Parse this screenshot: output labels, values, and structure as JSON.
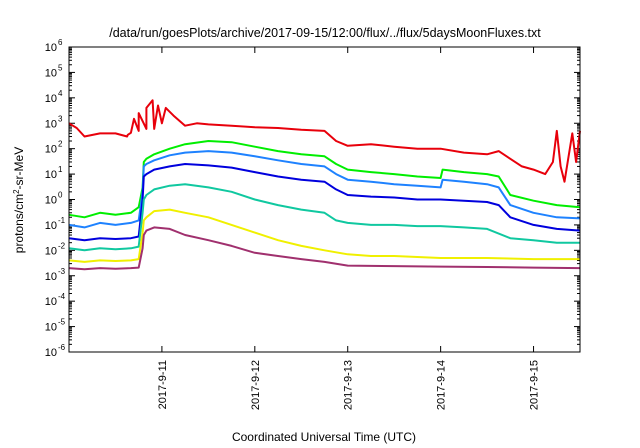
{
  "chart_data": {
    "type": "line",
    "title": "/data/run/goesPlots/archive/2017-09-15/12:00/flux/../flux/5daysMoonFluxes.txt",
    "xlabel": "Coordinated Universal Time (UTC)",
    "ylabel": "protons/cm2-sr-MeV",
    "y_scale": "log",
    "ylim": [
      1e-06,
      1000000.0
    ],
    "y_ticks": [
      {
        "value": 1e-06,
        "base": "10",
        "exp": "-6"
      },
      {
        "value": 1e-05,
        "base": "10",
        "exp": "-5"
      },
      {
        "value": 0.0001,
        "base": "10",
        "exp": "-4"
      },
      {
        "value": 0.001,
        "base": "10",
        "exp": "-3"
      },
      {
        "value": 0.01,
        "base": "10",
        "exp": "-2"
      },
      {
        "value": 0.1,
        "base": "10",
        "exp": "-1"
      },
      {
        "value": 1,
        "base": "10",
        "exp": "0"
      },
      {
        "value": 10,
        "base": "10",
        "exp": "1"
      },
      {
        "value": 100,
        "base": "10",
        "exp": "2"
      },
      {
        "value": 1000,
        "base": "10",
        "exp": "3"
      },
      {
        "value": 10000,
        "base": "10",
        "exp": "4"
      },
      {
        "value": 100000,
        "base": "10",
        "exp": "5"
      },
      {
        "value": 1000000,
        "base": "10",
        "exp": "6"
      }
    ],
    "xlim": [
      "2017-09-10 00:00",
      "2017-09-15 12:00"
    ],
    "x_ticks": [
      "2017-9-11",
      "2017-9-12",
      "2017-9-13",
      "2017-9-14",
      "2017-9-15"
    ],
    "x_tick_dates": [
      "2017-09-11",
      "2017-09-12",
      "2017-09-13",
      "2017-09-14",
      "2017-09-15"
    ],
    "grid": false,
    "series": [
      {
        "color": "#e8000b",
        "points": [
          [
            "2017-09-10 00:00",
            1000
          ],
          [
            "2017-09-10 02:00",
            650
          ],
          [
            "2017-09-10 04:00",
            300
          ],
          [
            "2017-09-10 08:00",
            400
          ],
          [
            "2017-09-10 12:00",
            400
          ],
          [
            "2017-09-10 15:00",
            300
          ],
          [
            "2017-09-10 18:00",
            500
          ],
          [
            "2017-09-10 20:00",
            600
          ],
          [
            "2017-09-10 22:00",
            600
          ],
          [
            "2017-09-11 00:00",
            1000
          ],
          [
            "2017-09-10 15:12",
            350
          ],
          [
            "2017-09-10 16:00",
            420
          ],
          [
            "2017-09-10 16:48",
            1500
          ],
          [
            "2017-09-10 18:00",
            2500
          ],
          [
            "2017-09-10 20:00",
            4000
          ],
          [
            "2017-09-10 21:36",
            8000
          ],
          [
            "2017-09-10 23:00",
            5000
          ],
          [
            "2017-09-11 01:00",
            4000
          ],
          [
            "2017-09-11 03:00",
            2000
          ],
          [
            "2017-09-11 06:00",
            800
          ],
          [
            "2017-09-11 09:00",
            1000
          ],
          [
            "2017-09-11 12:00",
            900
          ],
          [
            "2017-09-11 18:00",
            800
          ],
          [
            "2017-09-12 00:00",
            700
          ],
          [
            "2017-09-12 06:00",
            650
          ],
          [
            "2017-09-12 12:00",
            550
          ],
          [
            "2017-09-12 18:00",
            500
          ],
          [
            "2017-09-12 21:00",
            200
          ],
          [
            "2017-09-13 00:00",
            130
          ],
          [
            "2017-09-13 06:00",
            150
          ],
          [
            "2017-09-13 12:00",
            120
          ],
          [
            "2017-09-13 18:00",
            100
          ],
          [
            "2017-09-14 00:00",
            100
          ],
          [
            "2017-09-14 06:00",
            70
          ],
          [
            "2017-09-14 12:00",
            60
          ],
          [
            "2017-09-14 15:00",
            80
          ],
          [
            "2017-09-14 18:00",
            40
          ],
          [
            "2017-09-14 21:00",
            20
          ],
          [
            "2017-09-15 00:00",
            15
          ],
          [
            "2017-09-15 03:00",
            10
          ],
          [
            "2017-09-15 05:00",
            30
          ],
          [
            "2017-09-15 06:00",
            500
          ],
          [
            "2017-09-15 07:00",
            20
          ],
          [
            "2017-09-15 08:00",
            5
          ],
          [
            "2017-09-15 10:00",
            400
          ],
          [
            "2017-09-15 11:00",
            30
          ],
          [
            "2017-09-15 12:00",
            500
          ]
        ]
      },
      {
        "color": "#00ee00",
        "points": [
          [
            "2017-09-10 00:00",
            0.25
          ],
          [
            "2017-09-10 04:00",
            0.2
          ],
          [
            "2017-09-10 08:00",
            0.3
          ],
          [
            "2017-09-10 12:00",
            0.25
          ],
          [
            "2017-09-10 16:00",
            0.3
          ],
          [
            "2017-09-10 18:00",
            0.5
          ],
          [
            "2017-09-10 19:00",
            3
          ],
          [
            "2017-09-10 19:20",
            30
          ],
          [
            "2017-09-10 20:00",
            40
          ],
          [
            "2017-09-10 22:00",
            60
          ],
          [
            "2017-09-11 02:00",
            100
          ],
          [
            "2017-09-11 06:00",
            150
          ],
          [
            "2017-09-11 12:00",
            200
          ],
          [
            "2017-09-11 18:00",
            180
          ],
          [
            "2017-09-12 00:00",
            120
          ],
          [
            "2017-09-12 06:00",
            80
          ],
          [
            "2017-09-12 12:00",
            60
          ],
          [
            "2017-09-12 18:00",
            50
          ],
          [
            "2017-09-12 21:00",
            25
          ],
          [
            "2017-09-13 00:00",
            15
          ],
          [
            "2017-09-13 06:00",
            12
          ],
          [
            "2017-09-13 12:00",
            10
          ],
          [
            "2017-09-13 18:00",
            8
          ],
          [
            "2017-09-14 00:00",
            7
          ],
          [
            "2017-09-14 00:30",
            15
          ],
          [
            "2017-09-14 06:00",
            12
          ],
          [
            "2017-09-14 12:00",
            10
          ],
          [
            "2017-09-14 15:00",
            8
          ],
          [
            "2017-09-14 18:00",
            1.5
          ],
          [
            "2017-09-15 00:00",
            0.9
          ],
          [
            "2017-09-15 06:00",
            0.6
          ],
          [
            "2017-09-15 12:00",
            0.5
          ]
        ]
      },
      {
        "color": "#1e82ff",
        "points": [
          [
            "2017-09-10 00:00",
            0.1
          ],
          [
            "2017-09-10 04:00",
            0.08
          ],
          [
            "2017-09-10 08:00",
            0.12
          ],
          [
            "2017-09-10 12:00",
            0.1
          ],
          [
            "2017-09-10 16:00",
            0.12
          ],
          [
            "2017-09-10 18:00",
            0.15
          ],
          [
            "2017-09-10 19:00",
            2
          ],
          [
            "2017-09-10 19:20",
            20
          ],
          [
            "2017-09-10 20:00",
            25
          ],
          [
            "2017-09-10 22:00",
            35
          ],
          [
            "2017-09-11 02:00",
            55
          ],
          [
            "2017-09-11 06:00",
            70
          ],
          [
            "2017-09-11 12:00",
            80
          ],
          [
            "2017-09-11 18:00",
            70
          ],
          [
            "2017-09-12 00:00",
            50
          ],
          [
            "2017-09-12 06:00",
            35
          ],
          [
            "2017-09-12 12:00",
            25
          ],
          [
            "2017-09-12 18:00",
            20
          ],
          [
            "2017-09-12 21:00",
            10
          ],
          [
            "2017-09-13 00:00",
            6
          ],
          [
            "2017-09-13 06:00",
            5
          ],
          [
            "2017-09-13 12:00",
            4
          ],
          [
            "2017-09-13 18:00",
            3.5
          ],
          [
            "2017-09-14 00:00",
            3
          ],
          [
            "2017-09-14 00:30",
            6
          ],
          [
            "2017-09-14 06:00",
            5
          ],
          [
            "2017-09-14 12:00",
            4
          ],
          [
            "2017-09-14 15:00",
            3
          ],
          [
            "2017-09-14 18:00",
            0.6
          ],
          [
            "2017-09-15 00:00",
            0.3
          ],
          [
            "2017-09-15 06:00",
            0.2
          ],
          [
            "2017-09-15 12:00",
            0.18
          ]
        ]
      },
      {
        "color": "#0000dd",
        "points": [
          [
            "2017-09-10 00:00",
            0.03
          ],
          [
            "2017-09-10 04:00",
            0.025
          ],
          [
            "2017-09-10 08:00",
            0.03
          ],
          [
            "2017-09-10 12:00",
            0.028
          ],
          [
            "2017-09-10 16:00",
            0.03
          ],
          [
            "2017-09-10 18:00",
            0.035
          ],
          [
            "2017-09-10 19:00",
            1
          ],
          [
            "2017-09-10 19:20",
            8
          ],
          [
            "2017-09-10 20:00",
            10
          ],
          [
            "2017-09-10 22:00",
            15
          ],
          [
            "2017-09-11 02:00",
            20
          ],
          [
            "2017-09-11 06:00",
            25
          ],
          [
            "2017-09-11 12:00",
            22
          ],
          [
            "2017-09-11 18:00",
            18
          ],
          [
            "2017-09-12 00:00",
            12
          ],
          [
            "2017-09-12 06:00",
            8
          ],
          [
            "2017-09-12 12:00",
            6
          ],
          [
            "2017-09-12 18:00",
            5
          ],
          [
            "2017-09-12 21:00",
            2.5
          ],
          [
            "2017-09-13 00:00",
            1.5
          ],
          [
            "2017-09-13 06:00",
            1.3
          ],
          [
            "2017-09-13 12:00",
            1.2
          ],
          [
            "2017-09-13 18:00",
            1
          ],
          [
            "2017-09-14 00:00",
            1
          ],
          [
            "2017-09-14 06:00",
            0.9
          ],
          [
            "2017-09-14 12:00",
            0.8
          ],
          [
            "2017-09-14 15:00",
            0.6
          ],
          [
            "2017-09-14 18:00",
            0.2
          ],
          [
            "2017-09-15 00:00",
            0.1
          ],
          [
            "2017-09-15 06:00",
            0.07
          ],
          [
            "2017-09-15 12:00",
            0.06
          ]
        ]
      },
      {
        "color": "#10c8a0",
        "points": [
          [
            "2017-09-10 00:00",
            0.012
          ],
          [
            "2017-09-10 04:00",
            0.01
          ],
          [
            "2017-09-10 08:00",
            0.012
          ],
          [
            "2017-09-10 12:00",
            0.011
          ],
          [
            "2017-09-10 16:00",
            0.012
          ],
          [
            "2017-09-10 18:00",
            0.014
          ],
          [
            "2017-09-10 19:00",
            0.3
          ],
          [
            "2017-09-10 19:20",
            1
          ],
          [
            "2017-09-10 20:00",
            1.5
          ],
          [
            "2017-09-10 22:00",
            2.5
          ],
          [
            "2017-09-11 02:00",
            3.5
          ],
          [
            "2017-09-11 06:00",
            4
          ],
          [
            "2017-09-11 12:00",
            3
          ],
          [
            "2017-09-11 18:00",
            2
          ],
          [
            "2017-09-12 00:00",
            1
          ],
          [
            "2017-09-12 06:00",
            0.6
          ],
          [
            "2017-09-12 12:00",
            0.4
          ],
          [
            "2017-09-12 18:00",
            0.3
          ],
          [
            "2017-09-12 21:00",
            0.15
          ],
          [
            "2017-09-13 00:00",
            0.12
          ],
          [
            "2017-09-13 06:00",
            0.1
          ],
          [
            "2017-09-13 12:00",
            0.1
          ],
          [
            "2017-09-13 18:00",
            0.09
          ],
          [
            "2017-09-14 00:00",
            0.09
          ],
          [
            "2017-09-14 06:00",
            0.08
          ],
          [
            "2017-09-14 12:00",
            0.07
          ],
          [
            "2017-09-14 18:00",
            0.03
          ],
          [
            "2017-09-15 00:00",
            0.025
          ],
          [
            "2017-09-15 06:00",
            0.02
          ],
          [
            "2017-09-15 12:00",
            0.02
          ]
        ]
      },
      {
        "color": "#f0f000",
        "points": [
          [
            "2017-09-10 00:00",
            0.004
          ],
          [
            "2017-09-10 04:00",
            0.0035
          ],
          [
            "2017-09-10 08:00",
            0.004
          ],
          [
            "2017-09-10 12:00",
            0.0038
          ],
          [
            "2017-09-10 16:00",
            0.004
          ],
          [
            "2017-09-10 18:00",
            0.0045
          ],
          [
            "2017-09-10 19:00",
            0.05
          ],
          [
            "2017-09-10 19:20",
            0.15
          ],
          [
            "2017-09-10 20:00",
            0.2
          ],
          [
            "2017-09-10 22:00",
            0.35
          ],
          [
            "2017-09-11 02:00",
            0.4
          ],
          [
            "2017-09-11 06:00",
            0.3
          ],
          [
            "2017-09-11 12:00",
            0.2
          ],
          [
            "2017-09-11 18:00",
            0.1
          ],
          [
            "2017-09-12 00:00",
            0.05
          ],
          [
            "2017-09-12 06:00",
            0.025
          ],
          [
            "2017-09-12 12:00",
            0.015
          ],
          [
            "2017-09-12 18:00",
            0.01
          ],
          [
            "2017-09-13 00:00",
            0.007
          ],
          [
            "2017-09-13 06:00",
            0.006
          ],
          [
            "2017-09-13 12:00",
            0.006
          ],
          [
            "2017-09-14 00:00",
            0.005
          ],
          [
            "2017-09-14 12:00",
            0.005
          ],
          [
            "2017-09-15 00:00",
            0.0045
          ],
          [
            "2017-09-15 12:00",
            0.0045
          ]
        ]
      },
      {
        "color": "#a0306e",
        "points": [
          [
            "2017-09-10 00:00",
            0.002
          ],
          [
            "2017-09-10 04:00",
            0.0018
          ],
          [
            "2017-09-10 08:00",
            0.002
          ],
          [
            "2017-09-10 12:00",
            0.0019
          ],
          [
            "2017-09-10 16:00",
            0.002
          ],
          [
            "2017-09-10 18:00",
            0.0021
          ],
          [
            "2017-09-10 19:00",
            0.012
          ],
          [
            "2017-09-10 19:20",
            0.04
          ],
          [
            "2017-09-10 20:00",
            0.06
          ],
          [
            "2017-09-10 22:00",
            0.08
          ],
          [
            "2017-09-11 02:00",
            0.07
          ],
          [
            "2017-09-11 06:00",
            0.04
          ],
          [
            "2017-09-11 12:00",
            0.025
          ],
          [
            "2017-09-11 18:00",
            0.015
          ],
          [
            "2017-09-12 00:00",
            0.008
          ],
          [
            "2017-09-12 06:00",
            0.006
          ],
          [
            "2017-09-12 12:00",
            0.0045
          ],
          [
            "2017-09-12 18:00",
            0.0035
          ],
          [
            "2017-09-13 00:00",
            0.0025
          ],
          [
            "2017-09-13 12:00",
            0.0024
          ],
          [
            "2017-09-14 00:00",
            0.0023
          ],
          [
            "2017-09-14 12:00",
            0.0022
          ],
          [
            "2017-09-15 00:00",
            0.0021
          ],
          [
            "2017-09-15 12:00",
            0.002
          ]
        ]
      }
    ]
  }
}
